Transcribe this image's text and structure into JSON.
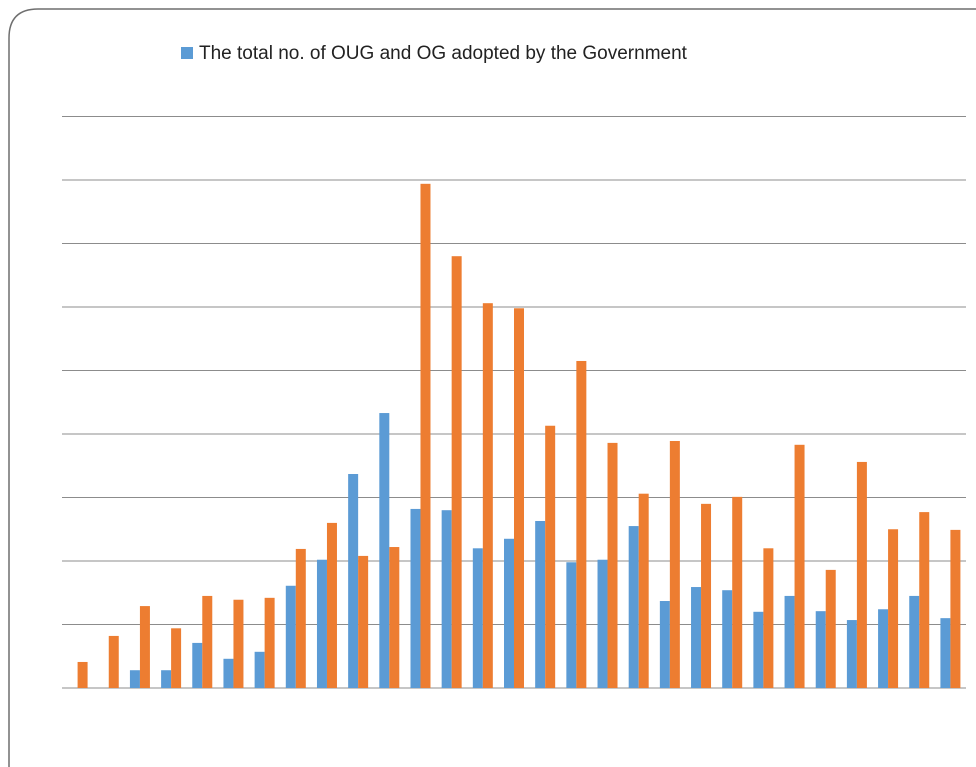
{
  "chart_data": {
    "type": "bar",
    "categories": [
      null,
      null,
      null,
      null,
      null,
      null,
      null,
      null,
      null,
      null,
      null,
      null,
      null,
      null,
      null,
      null,
      null,
      null,
      null,
      null,
      null,
      null,
      null,
      null,
      null,
      null,
      null,
      null,
      null
    ],
    "series": [
      {
        "name": "The total no. of OUG and OG adopted by the Government",
        "color": "#5b9bd5",
        "values": [
          0,
          0,
          0.28,
          0.28,
          0.71,
          0.46,
          0.57,
          1.61,
          2.02,
          3.37,
          4.33,
          2.82,
          2.8,
          2.2,
          2.35,
          2.63,
          1.98,
          2.02,
          2.55,
          1.37,
          1.59,
          1.54,
          1.2,
          1.45,
          1.21,
          1.07,
          1.24,
          1.45,
          1.1
        ]
      },
      {
        "color": "#ed7d31",
        "values": [
          0.41,
          0.82,
          1.29,
          0.94,
          1.45,
          1.39,
          1.42,
          2.19,
          2.6,
          2.08,
          2.22,
          7.94,
          6.8,
          6.06,
          5.98,
          4.13,
          5.15,
          3.86,
          3.06,
          3.89,
          2.9,
          3.01,
          2.2,
          3.83,
          1.86,
          3.56,
          2.5,
          2.77,
          2.49
        ]
      }
    ],
    "ylim": [
      0,
      9
    ],
    "yticks": [
      0,
      1,
      2,
      3,
      4,
      5,
      6,
      7,
      8,
      9
    ],
    "grid": true,
    "legend": "top"
  }
}
